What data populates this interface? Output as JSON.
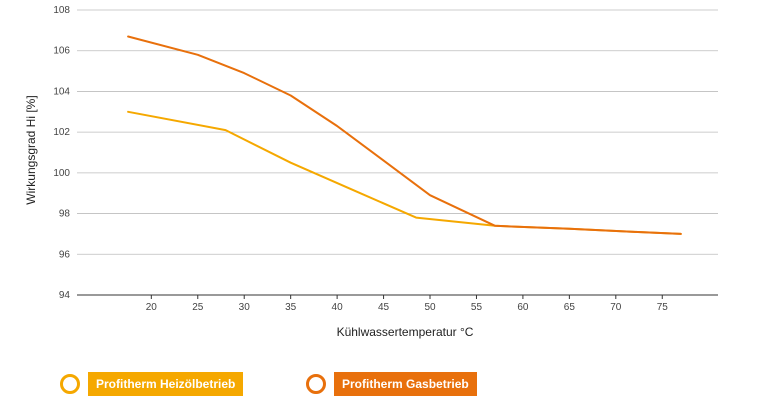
{
  "chart_data": {
    "type": "line",
    "title": "",
    "xlabel": "Kühlwassertemperatur °C",
    "ylabel": "Wirkungsgrad Hi [%]",
    "xlim": [
      12,
      81
    ],
    "ylim": [
      94,
      108
    ],
    "x_ticks": [
      20,
      25,
      30,
      35,
      40,
      45,
      50,
      55,
      60,
      65,
      70,
      75
    ],
    "y_ticks": [
      94,
      96,
      98,
      100,
      102,
      104,
      106,
      108
    ],
    "grid": "horizontal",
    "legend_position": "bottom-left",
    "series": [
      {
        "name": "Profitherm Heizölbetrieb",
        "color": "#f5a800",
        "points": [
          [
            17.5,
            103.0
          ],
          [
            28,
            102.1
          ],
          [
            35,
            100.5
          ],
          [
            42,
            99.1
          ],
          [
            48.5,
            97.8
          ],
          [
            57,
            97.4
          ],
          [
            65,
            97.25
          ],
          [
            72,
            97.1
          ],
          [
            77,
            97.0
          ]
        ]
      },
      {
        "name": "Profitherm Gasbetrieb",
        "color": "#e8700c",
        "points": [
          [
            17.5,
            106.7
          ],
          [
            25,
            105.8
          ],
          [
            30,
            104.9
          ],
          [
            35,
            103.8
          ],
          [
            40,
            102.3
          ],
          [
            45,
            100.6
          ],
          [
            50,
            98.9
          ],
          [
            57,
            97.4
          ],
          [
            65,
            97.25
          ],
          [
            72,
            97.1
          ],
          [
            77,
            97.0
          ]
        ]
      }
    ]
  }
}
